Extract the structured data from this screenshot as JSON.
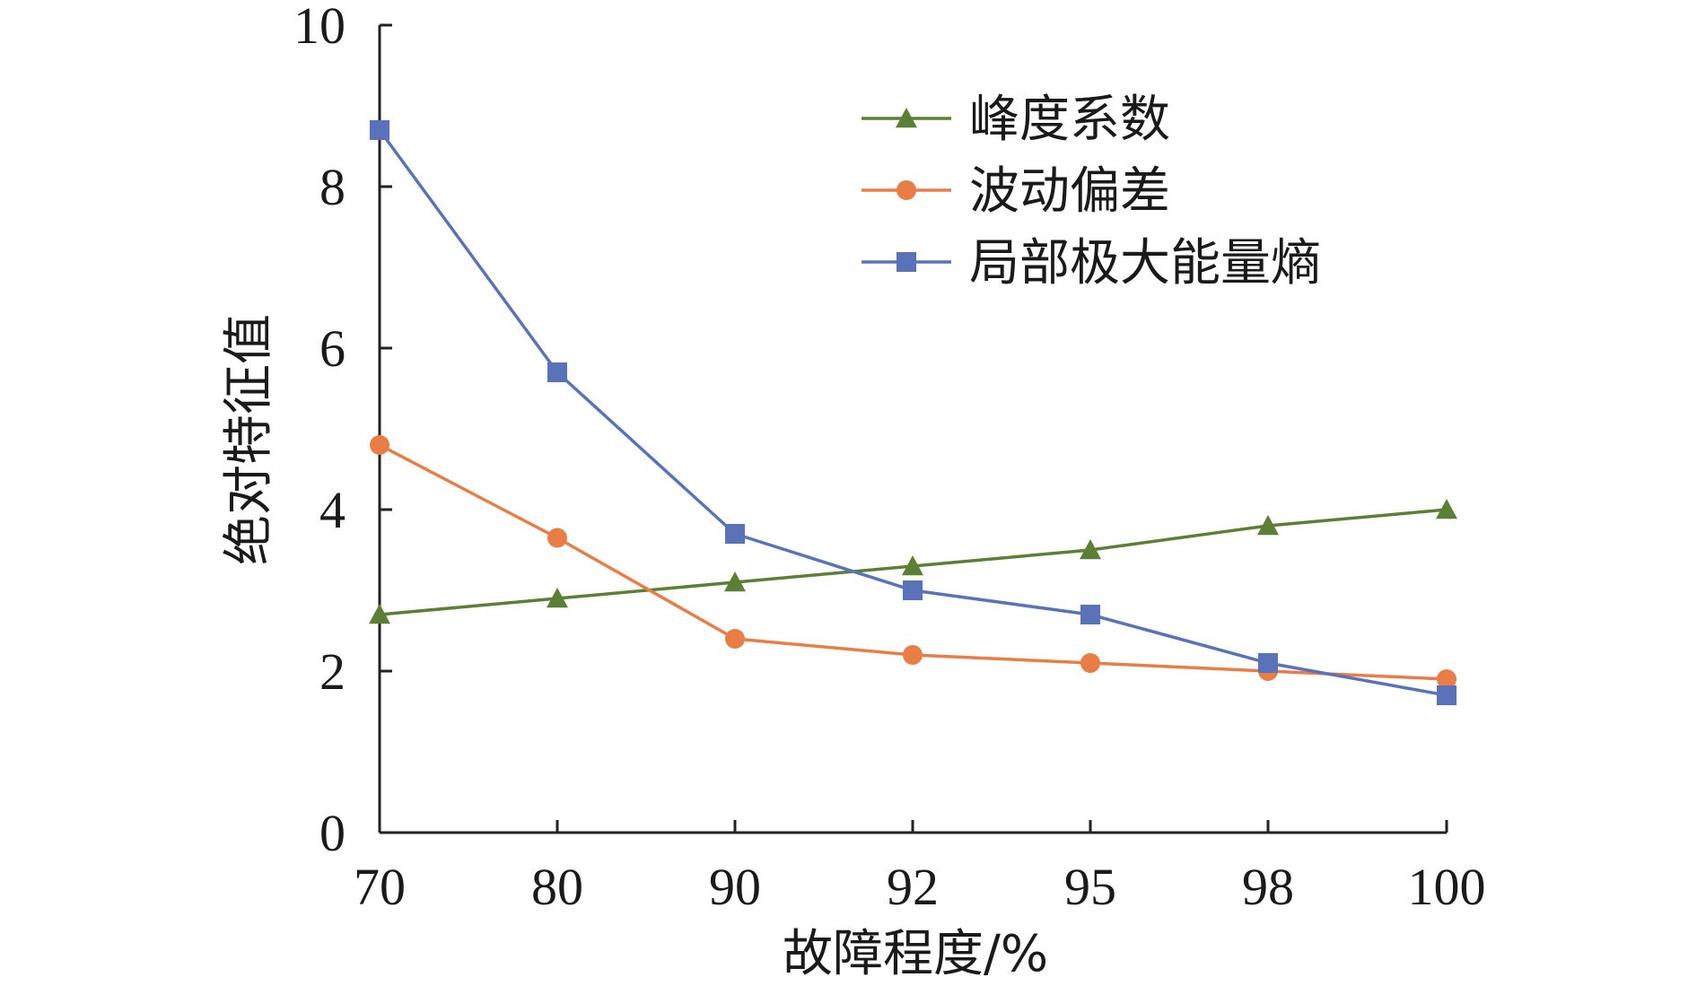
{
  "chart_data": {
    "type": "line",
    "title": "",
    "xlabel": "故障程度/%",
    "ylabel": "绝对特征值",
    "categories": [
      "70",
      "80",
      "90",
      "92",
      "95",
      "98",
      "100"
    ],
    "ylim": [
      0,
      10
    ],
    "yticks": [
      "0",
      "2",
      "4",
      "6",
      "8",
      "10"
    ],
    "grid": false,
    "legend_position": "top-right",
    "series": [
      {
        "name": "峰度系数",
        "color": "#5b7f35",
        "marker": "triangle",
        "values": [
          2.7,
          2.9,
          3.1,
          3.3,
          3.5,
          3.8,
          4.0
        ]
      },
      {
        "name": "波动偏差",
        "color": "#e87d45",
        "marker": "circle",
        "values": [
          4.8,
          3.65,
          2.4,
          2.2,
          2.1,
          2.0,
          1.9
        ]
      },
      {
        "name": "局部极大能量熵",
        "color": "#5a73b8",
        "marker": "square",
        "values": [
          8.7,
          5.7,
          3.7,
          3.0,
          2.7,
          2.1,
          1.7
        ]
      }
    ]
  }
}
